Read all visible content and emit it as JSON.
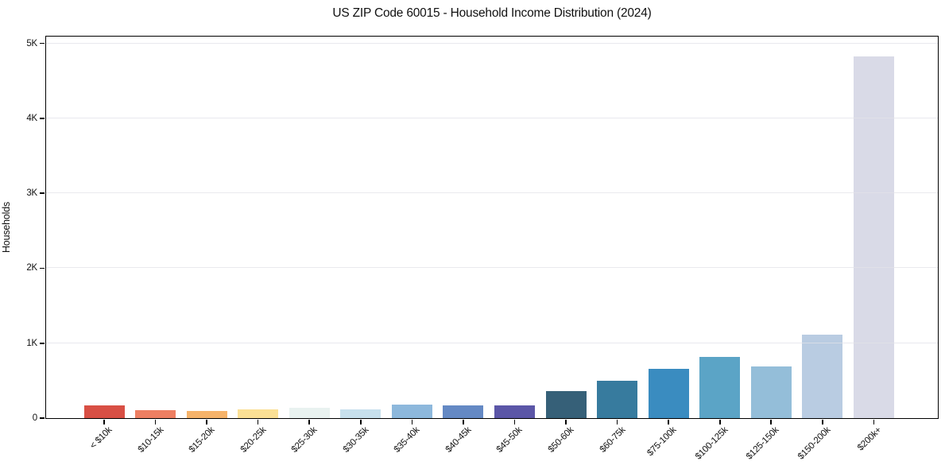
{
  "chart_data": {
    "type": "bar",
    "title": "US ZIP Code 60015 - Household Income Distribution (2024)",
    "xlabel": "",
    "ylabel": "Households",
    "categories": [
      "< $10k",
      "$10-15k",
      "$15-20k",
      "$20-25k",
      "$25-30k",
      "$30-35k",
      "$35-40k",
      "$40-45k",
      "$45-50k",
      "$50-60k",
      "$60-75k",
      "$75-100k",
      "$100-125k",
      "$125-150k",
      "$150-200k",
      "$200k+"
    ],
    "values": [
      175,
      110,
      100,
      115,
      135,
      120,
      180,
      168,
      172,
      360,
      495,
      655,
      820,
      690,
      1110,
      4830
    ],
    "bar_colors": [
      "#d84f44",
      "#ee7f62",
      "#f6b36a",
      "#fbe095",
      "#e9f2f0",
      "#c7e0ed",
      "#8db8dc",
      "#6489c4",
      "#5b56a7",
      "#366078",
      "#377b9e",
      "#3a8cc0",
      "#5ba4c6",
      "#94bed9",
      "#b9cce2",
      "#d9dae7"
    ],
    "ylim": [
      0,
      5075
    ],
    "yticks": {
      "values": [
        0,
        1000,
        2000,
        3000,
        4000,
        5000
      ],
      "labels": [
        "0",
        "1K",
        "2K",
        "3K",
        "4K",
        "5K"
      ]
    },
    "grid": "horizontal",
    "grid_above_bars": true,
    "legend": "none",
    "frame": true
  },
  "colors": {
    "background": "#ffffff",
    "axis": "#000000",
    "grid": "#e1e1e8",
    "text": "#111111"
  }
}
